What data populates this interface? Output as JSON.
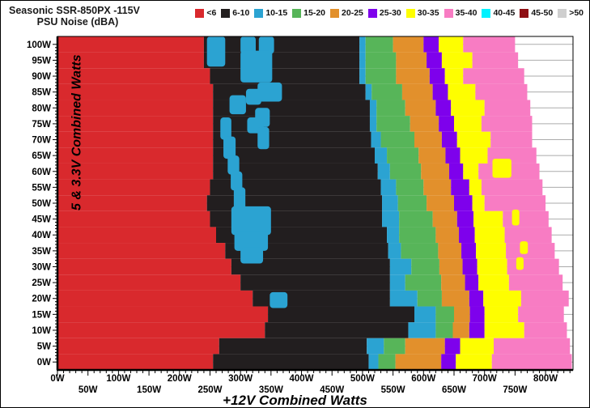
{
  "title": {
    "line1": "Seasonic SSR-850PX -115V",
    "line2": "PSU Noise (dBA)"
  },
  "legend": {
    "items": [
      {
        "label": "<6",
        "color": "#D9292D"
      },
      {
        "label": "6-10",
        "color": "#221E1F"
      },
      {
        "label": "10-15",
        "color": "#2BA3D2"
      },
      {
        "label": "15-20",
        "color": "#57B559"
      },
      {
        "label": "20-25",
        "color": "#E2902C"
      },
      {
        "label": "25-30",
        "color": "#7E01EC"
      },
      {
        "label": "30-35",
        "color": "#FEFE00"
      },
      {
        "label": "35-40",
        "color": "#F87CC3"
      },
      {
        "label": "40-45",
        "color": "#00F2FF"
      },
      {
        "label": "45-50",
        "color": "#8F0E13"
      },
      {
        "label": ">50",
        "color": "#CFCFCF"
      }
    ]
  },
  "chart_data": {
    "type": "heatmap",
    "title": "Seasonic SSR-850PX -115V PSU Noise (dBA)",
    "xlabel": "+12V Combined Watts",
    "ylabel": "5 & 3.3V Combined Watts",
    "x_range": [
      0,
      845
    ],
    "y_range": [
      -2.5,
      102.5
    ],
    "x_major_step": 50,
    "x_minor_step": 10,
    "y_major_step": 5,
    "y_minor_step": 1,
    "grid": "horizontal-5W",
    "gridline_color": "#ABABAB",
    "x_ticks": [
      {
        "v": 0,
        "label": "0W"
      },
      {
        "v": 50,
        "label": "50W"
      },
      {
        "v": 100,
        "label": "100W"
      },
      {
        "v": 150,
        "label": "150W"
      },
      {
        "v": 200,
        "label": "200W"
      },
      {
        "v": 250,
        "label": "250W"
      },
      {
        "v": 300,
        "label": "300W"
      },
      {
        "v": 350,
        "label": "350W"
      },
      {
        "v": 400,
        "label": "400W"
      },
      {
        "v": 450,
        "label": "450W"
      },
      {
        "v": 500,
        "label": "500W"
      },
      {
        "v": 550,
        "label": "550W"
      },
      {
        "v": 600,
        "label": "600W"
      },
      {
        "v": 650,
        "label": "650W"
      },
      {
        "v": 700,
        "label": "700W"
      },
      {
        "v": 750,
        "label": "750W"
      },
      {
        "v": 800,
        "label": "800W"
      }
    ],
    "y_ticks": [
      {
        "v": 0,
        "label": "0W"
      },
      {
        "v": 5,
        "label": "5W"
      },
      {
        "v": 10,
        "label": "10W"
      },
      {
        "v": 15,
        "label": "15W"
      },
      {
        "v": 20,
        "label": "20W"
      },
      {
        "v": 25,
        "label": "25W"
      },
      {
        "v": 30,
        "label": "30W"
      },
      {
        "v": 35,
        "label": "35W"
      },
      {
        "v": 40,
        "label": "40W"
      },
      {
        "v": 45,
        "label": "45W"
      },
      {
        "v": 50,
        "label": "50W"
      },
      {
        "v": 55,
        "label": "55W"
      },
      {
        "v": 60,
        "label": "60W"
      },
      {
        "v": 65,
        "label": "65W"
      },
      {
        "v": 70,
        "label": "70W"
      },
      {
        "v": 75,
        "label": "75W"
      },
      {
        "v": 80,
        "label": "80W"
      },
      {
        "v": 85,
        "label": "85W"
      },
      {
        "v": 90,
        "label": "90W"
      },
      {
        "v": 95,
        "label": "95W"
      },
      {
        "v": 100,
        "label": "100W"
      }
    ],
    "band_colors": {
      "r": "#D9292D",
      "k": "#221E1F",
      "c": "#2BA3D2",
      "g": "#57B559",
      "o": "#E2902C",
      "p": "#7E01EC",
      "y": "#FEFE00",
      "m": "#F87CC3"
    },
    "band_meaning_dBA": {
      "r": "<6",
      "k": "6-10",
      "c": "10-15",
      "g": "15-20",
      "o": "20-25",
      "p": "25-30",
      "y": "30-35",
      "m": "35-40"
    },
    "rows": [
      {
        "v": 100,
        "s": [
          [
            "r",
            240
          ],
          [
            "k",
            495
          ],
          [
            "c",
            505
          ],
          [
            "g",
            550
          ],
          [
            "o",
            600
          ],
          [
            "p",
            625
          ],
          [
            "y",
            665
          ],
          [
            "m",
            750
          ]
        ]
      },
      {
        "v": 95,
        "s": [
          [
            "r",
            240
          ],
          [
            "k",
            495
          ],
          [
            "c",
            505
          ],
          [
            "g",
            555
          ],
          [
            "o",
            605
          ],
          [
            "p",
            630
          ],
          [
            "y",
            680
          ],
          [
            "m",
            755
          ]
        ]
      },
      {
        "v": 90,
        "s": [
          [
            "r",
            250
          ],
          [
            "k",
            495
          ],
          [
            "c",
            505
          ],
          [
            "g",
            555
          ],
          [
            "o",
            610
          ],
          [
            "p",
            635
          ],
          [
            "y",
            665
          ],
          [
            "m",
            765
          ]
        ]
      },
      {
        "v": 85,
        "s": [
          [
            "r",
            255
          ],
          [
            "k",
            505
          ],
          [
            "c",
            515
          ],
          [
            "g",
            565
          ],
          [
            "o",
            615
          ],
          [
            "p",
            640
          ],
          [
            "y",
            685
          ],
          [
            "m",
            770
          ]
        ]
      },
      {
        "v": 80,
        "s": [
          [
            "r",
            255
          ],
          [
            "k",
            512
          ],
          [
            "c",
            523
          ],
          [
            "g",
            570
          ],
          [
            "o",
            620
          ],
          [
            "p",
            645
          ],
          [
            "y",
            700
          ],
          [
            "m",
            775
          ]
        ]
      },
      {
        "v": 75,
        "s": [
          [
            "r",
            255
          ],
          [
            "k",
            512
          ],
          [
            "c",
            523
          ],
          [
            "g",
            578
          ],
          [
            "o",
            625
          ],
          [
            "p",
            650
          ],
          [
            "y",
            695
          ],
          [
            "m",
            778
          ]
        ]
      },
      {
        "v": 70,
        "s": [
          [
            "r",
            255
          ],
          [
            "k",
            514
          ],
          [
            "c",
            530
          ],
          [
            "g",
            585
          ],
          [
            "o",
            630
          ],
          [
            "p",
            655
          ],
          [
            "y",
            710
          ],
          [
            "m",
            778
          ]
        ]
      },
      {
        "v": 65,
        "s": [
          [
            "r",
            255
          ],
          [
            "k",
            520
          ],
          [
            "c",
            540
          ],
          [
            "g",
            592
          ],
          [
            "o",
            636
          ],
          [
            "p",
            660
          ],
          [
            "y",
            705
          ],
          [
            "m",
            785
          ]
        ]
      },
      {
        "v": 60,
        "s": [
          [
            "r",
            255
          ],
          [
            "k",
            525
          ],
          [
            "c",
            545
          ],
          [
            "g",
            596
          ],
          [
            "o",
            642
          ],
          [
            "p",
            665
          ],
          [
            "y",
            690
          ],
          [
            "m",
            790
          ]
        ]
      },
      {
        "v": 55,
        "s": [
          [
            "r",
            250
          ],
          [
            "k",
            530
          ],
          [
            "c",
            555
          ],
          [
            "g",
            600
          ],
          [
            "o",
            645
          ],
          [
            "p",
            675
          ],
          [
            "y",
            695
          ],
          [
            "m",
            795
          ]
        ]
      },
      {
        "v": 50,
        "s": [
          [
            "r",
            245
          ],
          [
            "k",
            532
          ],
          [
            "c",
            558
          ],
          [
            "g",
            605
          ],
          [
            "o",
            650
          ],
          [
            "p",
            680
          ],
          [
            "y",
            700
          ],
          [
            "m",
            800
          ]
        ]
      },
      {
        "v": 45,
        "s": [
          [
            "r",
            250
          ],
          [
            "k",
            532
          ],
          [
            "c",
            560
          ],
          [
            "g",
            615
          ],
          [
            "o",
            655
          ],
          [
            "p",
            682
          ],
          [
            "y",
            730
          ],
          [
            "m",
            805
          ]
        ]
      },
      {
        "v": 40,
        "s": [
          [
            "r",
            260
          ],
          [
            "k",
            540
          ],
          [
            "c",
            560
          ],
          [
            "g",
            620
          ],
          [
            "o",
            658
          ],
          [
            "p",
            684
          ],
          [
            "y",
            733
          ],
          [
            "m",
            810
          ]
        ]
      },
      {
        "v": 35,
        "s": [
          [
            "r",
            275
          ],
          [
            "k",
            542
          ],
          [
            "c",
            563
          ],
          [
            "g",
            624
          ],
          [
            "o",
            662
          ],
          [
            "p",
            686
          ],
          [
            "y",
            735
          ],
          [
            "m",
            815
          ]
        ]
      },
      {
        "v": 30,
        "s": [
          [
            "r",
            285
          ],
          [
            "k",
            545
          ],
          [
            "c",
            580
          ],
          [
            "g",
            626
          ],
          [
            "o",
            664
          ],
          [
            "p",
            688
          ],
          [
            "y",
            737
          ],
          [
            "m",
            822
          ]
        ]
      },
      {
        "v": 25,
        "s": [
          [
            "r",
            300
          ],
          [
            "k",
            545
          ],
          [
            "c",
            570
          ],
          [
            "g",
            629
          ],
          [
            "o",
            668
          ],
          [
            "p",
            690
          ],
          [
            "y",
            740
          ],
          [
            "m",
            828
          ]
        ]
      },
      {
        "v": 20,
        "s": [
          [
            "r",
            320
          ],
          [
            "k",
            545
          ],
          [
            "c",
            590
          ],
          [
            "g",
            630
          ],
          [
            "o",
            675
          ],
          [
            "p",
            698
          ],
          [
            "y",
            760
          ],
          [
            "m",
            838
          ]
        ]
      },
      {
        "v": 15,
        "s": [
          [
            "r",
            345
          ],
          [
            "k",
            585
          ],
          [
            "c",
            620
          ],
          [
            "g",
            650
          ],
          [
            "o",
            676
          ],
          [
            "p",
            700
          ],
          [
            "y",
            755
          ],
          [
            "m",
            830
          ]
        ]
      },
      {
        "v": 10,
        "s": [
          [
            "r",
            340
          ],
          [
            "k",
            575
          ],
          [
            "c",
            620
          ],
          [
            "g",
            648
          ],
          [
            "o",
            675
          ],
          [
            "p",
            700
          ],
          [
            "y",
            765
          ],
          [
            "m",
            835
          ]
        ]
      },
      {
        "v": 5,
        "s": [
          [
            "r",
            265
          ],
          [
            "k",
            507
          ],
          [
            "c",
            535
          ],
          [
            "g",
            570
          ],
          [
            "o",
            635
          ],
          [
            "p",
            660
          ],
          [
            "y",
            715
          ],
          [
            "m",
            840
          ]
        ]
      },
      {
        "v": 0,
        "s": [
          [
            "r",
            255
          ],
          [
            "k",
            510
          ],
          [
            "c",
            526
          ],
          [
            "g",
            554
          ],
          [
            "o",
            629
          ],
          [
            "p",
            653
          ],
          [
            "y",
            712
          ],
          [
            "m",
            843
          ]
        ]
      }
    ],
    "cyan_patches": [
      [
        245,
        275,
        102.5,
        93
      ],
      [
        300,
        325,
        102.5,
        97
      ],
      [
        330,
        355,
        102.5,
        97
      ],
      [
        300,
        352,
        98,
        88
      ],
      [
        328,
        368,
        88,
        82
      ],
      [
        309,
        334,
        86,
        81
      ],
      [
        282,
        309,
        84,
        78
      ],
      [
        324,
        348,
        80,
        74
      ],
      [
        311,
        338,
        77,
        72
      ],
      [
        328,
        347,
        74,
        67
      ],
      [
        267,
        285,
        77,
        70
      ],
      [
        272,
        292,
        71,
        64
      ],
      [
        279,
        298,
        65,
        59
      ],
      [
        284,
        303,
        60,
        54
      ],
      [
        289,
        308,
        55,
        48
      ],
      [
        285,
        350,
        49,
        40
      ],
      [
        290,
        345,
        41,
        35
      ],
      [
        300,
        337,
        36,
        31
      ],
      [
        348,
        377,
        22,
        17
      ]
    ],
    "yellow_patches": [
      [
        713,
        744,
        64,
        58
      ],
      [
        745,
        757,
        48,
        43
      ],
      [
        758,
        771,
        38,
        34
      ],
      [
        752,
        764,
        33,
        29
      ]
    ]
  }
}
